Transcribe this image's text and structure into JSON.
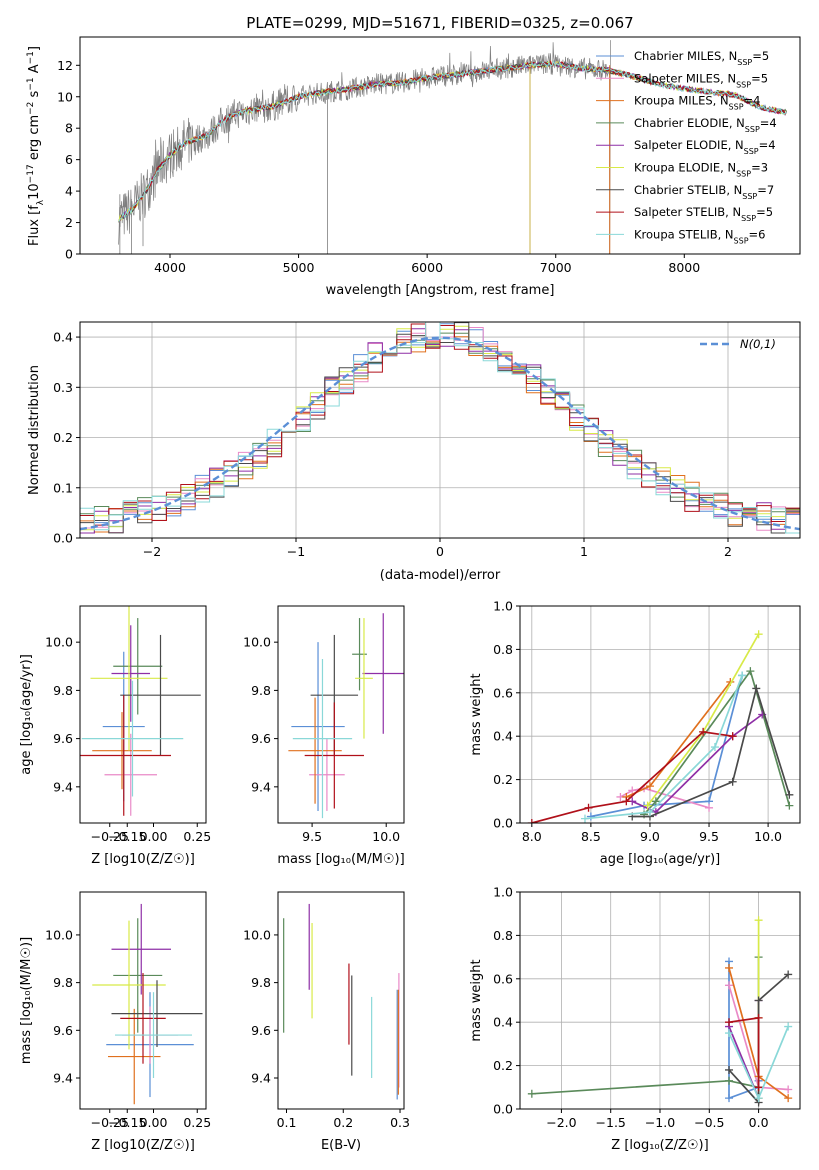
{
  "title": "PLATE=0299, MJD=51671, FIBERID=0325, z=0.067",
  "colors": {
    "chabrier_miles": "#5b8fd6",
    "salpeter_miles": "#e98ac7",
    "kroupa_miles": "#e0701e",
    "chabrier_elodie": "#5a8a5a",
    "salpeter_elodie": "#8e2fa6",
    "kroupa_elodie": "#d8ea48",
    "chabrier_stelib": "#4a4a4a",
    "salpeter_stelib": "#b0101a",
    "kroupa_stelib": "#8ad8d8",
    "data": "#7f7f7f",
    "normal": "#5b8fd6"
  },
  "chart_data": [
    {
      "type": "line",
      "title": "PLATE=0299, MJD=51671, FIBERID=0325, z=0.067",
      "xlabel": "wavelength [Angstrom, rest frame]",
      "ylabel": "Flux [f_λ 10^-17 erg cm^-2 s^-1 A^-1]",
      "xlim": [
        3300,
        8900
      ],
      "ylim": [
        0,
        13.8
      ],
      "xticks": [
        "4000",
        "5000",
        "6000",
        "7000",
        "8000"
      ],
      "yticks": [
        "0",
        "2",
        "4",
        "6",
        "8",
        "10",
        "12"
      ],
      "legend_position": "top-right",
      "legend": [
        {
          "base": "Chabrier MILES, N",
          "sub": "SSP",
          "tail": "=5"
        },
        {
          "base": "Salpeter MILES, N",
          "sub": "SSP",
          "tail": "=5"
        },
        {
          "base": "Kroupa MILES, N",
          "sub": "SSP",
          "tail": "=4"
        },
        {
          "base": "Chabrier ELODIE, N",
          "sub": "SSP",
          "tail": "=4"
        },
        {
          "base": "Salpeter ELODIE, N",
          "sub": "SSP",
          "tail": "=4"
        },
        {
          "base": "Kroupa ELODIE, N",
          "sub": "SSP",
          "tail": "=3"
        },
        {
          "base": "Chabrier STELIB, N",
          "sub": "SSP",
          "tail": "=7"
        },
        {
          "base": "Salpeter STELIB, N",
          "sub": "SSP",
          "tail": "=5"
        },
        {
          "base": "Kroupa STELIB, N",
          "sub": "SSP",
          "tail": "=6"
        }
      ],
      "model_continuum": {
        "x": [
          3600,
          3700,
          3800,
          3900,
          4000,
          4100,
          4200,
          4300,
          4400,
          4500,
          4600,
          4800,
          5000,
          5200,
          5400,
          5600,
          5800,
          6000,
          6200,
          6400,
          6600,
          6800,
          7000,
          7200,
          7400,
          7600,
          7800,
          8000,
          8200,
          8400,
          8600,
          8800
        ],
        "y": [
          2.2,
          2.8,
          3.8,
          5.3,
          6.3,
          7.0,
          7.3,
          7.6,
          8.4,
          8.9,
          9.1,
          9.4,
          10.0,
          10.3,
          10.5,
          10.8,
          10.9,
          11.2,
          11.4,
          11.6,
          11.8,
          12.0,
          12.1,
          11.8,
          11.7,
          11.3,
          10.8,
          10.5,
          10.3,
          10.1,
          9.3,
          9.0
        ]
      },
      "data_spectrum_note": "noisy observed spectrum drawn in grey around the models"
    },
    {
      "type": "histogram",
      "xlabel": "(data-model)/error",
      "ylabel": "Normed distribution",
      "xlim": [
        -2.5,
        2.5
      ],
      "ylim": [
        0,
        0.43
      ],
      "xticks": [
        "−2",
        "−1",
        "0",
        "1",
        "2"
      ],
      "yticks": [
        "0.0",
        "0.1",
        "0.2",
        "0.3",
        "0.4"
      ],
      "legend_position": "top-right",
      "legend_label": "N(0,1)",
      "bin_width": 0.1,
      "reference_curve": "standard normal density"
    },
    {
      "type": "scatter",
      "panel": "age vs Z",
      "xlabel": "Z [log10(Z/Z☉)]",
      "ylabel": "age [log10(age/yr)]",
      "xlim": [
        -0.42,
        0.3
      ],
      "ylim": [
        9.25,
        10.15
      ],
      "xticks": [
        "−0.25",
        "−0.15",
        "0.00",
        "0.25"
      ],
      "yticks": [
        "9.4",
        "9.6",
        "9.8",
        "10.0"
      ],
      "points": [
        {
          "series": "chabrier_miles",
          "x": -0.17,
          "xerr": 0.12,
          "y": 9.65,
          "yerr": 0.31
        },
        {
          "series": "salpeter_miles",
          "x": -0.13,
          "xerr": 0.15,
          "y": 9.45,
          "yerr": 0.17
        },
        {
          "series": "kroupa_miles",
          "x": -0.18,
          "xerr": 0.17,
          "y": 9.55,
          "yerr": 0.16
        },
        {
          "series": "chabrier_elodie",
          "x": -0.09,
          "xerr": 0.14,
          "y": 9.9,
          "yerr": 0.2
        },
        {
          "series": "salpeter_elodie",
          "x": -0.13,
          "xerr": 0.11,
          "y": 9.87,
          "yerr": 0.2
        },
        {
          "series": "kroupa_elodie",
          "x": -0.14,
          "xerr": 0.22,
          "y": 9.85,
          "yerr": 0.3
        },
        {
          "series": "chabrier_stelib",
          "x": 0.04,
          "xerr": 0.23,
          "y": 9.78,
          "yerr": 0.25
        },
        {
          "series": "salpeter_stelib",
          "x": -0.17,
          "xerr": 0.27,
          "y": 9.53,
          "yerr": 0.25
        },
        {
          "series": "kroupa_stelib",
          "x": -0.12,
          "xerr": 0.29,
          "y": 9.6,
          "yerr": 0.24
        }
      ]
    },
    {
      "type": "scatter",
      "panel": "age vs mass",
      "xlabel": "mass [log10(M/M☉)]",
      "ylabel": "",
      "xlim": [
        9.27,
        10.12
      ],
      "ylim": [
        9.25,
        10.15
      ],
      "xticks": [
        "9.5",
        "10.0"
      ],
      "yticks": [
        "9.4",
        "9.6",
        "9.8",
        "10.0"
      ],
      "points": [
        {
          "series": "chabrier_miles",
          "x": 9.54,
          "xerr": 0.18,
          "y": 9.65,
          "yerr": 0.35
        },
        {
          "series": "salpeter_miles",
          "x": 9.6,
          "xerr": 0.12,
          "y": 9.45,
          "yerr": 0.15
        },
        {
          "series": "kroupa_miles",
          "x": 9.52,
          "xerr": 0.18,
          "y": 9.55,
          "yerr": 0.22
        },
        {
          "series": "chabrier_elodie",
          "x": 9.82,
          "xerr": 0.05,
          "y": 9.95,
          "yerr": 0.15
        },
        {
          "series": "salpeter_elodie",
          "x": 9.98,
          "xerr": 0.14,
          "y": 9.87,
          "yerr": 0.25
        },
        {
          "series": "kroupa_elodie",
          "x": 9.85,
          "xerr": 0.06,
          "y": 9.85,
          "yerr": 0.25
        },
        {
          "series": "chabrier_stelib",
          "x": 9.65,
          "xerr": 0.16,
          "y": 9.78,
          "yerr": 0.25
        },
        {
          "series": "salpeter_stelib",
          "x": 9.65,
          "xerr": 0.2,
          "y": 9.53,
          "yerr": 0.22
        },
        {
          "series": "kroupa_stelib",
          "x": 9.57,
          "xerr": 0.2,
          "y": 9.6,
          "yerr": 0.33
        }
      ]
    },
    {
      "type": "line",
      "panel": "mass weight vs age",
      "xlabel": "age [log10(age/yr)]",
      "ylabel": "mass weight",
      "xlim": [
        7.9,
        10.27
      ],
      "ylim": [
        0,
        1.0
      ],
      "xticks": [
        "8.0",
        "8.5",
        "9.0",
        "9.5",
        "10.0"
      ],
      "yticks": [
        "0.0",
        "0.2",
        "0.4",
        "0.6",
        "0.8",
        "1.0"
      ],
      "series": [
        {
          "name": "chabrier_miles",
          "x": [
            8.5,
            8.95,
            9.5,
            9.78
          ],
          "y": [
            0.03,
            0.08,
            0.1,
            0.68
          ]
        },
        {
          "name": "salpeter_miles",
          "x": [
            8.75,
            8.85,
            8.95,
            9.5
          ],
          "y": [
            0.12,
            0.15,
            0.16,
            0.07
          ]
        },
        {
          "name": "kroupa_miles",
          "x": [
            8.8,
            9.0,
            9.68
          ],
          "y": [
            0.12,
            0.17,
            0.65
          ]
        },
        {
          "name": "chabrier_elodie",
          "x": [
            8.95,
            9.05,
            9.85,
            10.18
          ],
          "y": [
            0.04,
            0.1,
            0.7,
            0.08
          ]
        },
        {
          "name": "salpeter_elodie",
          "x": [
            8.85,
            9.05,
            9.7,
            9.95
          ],
          "y": [
            0.1,
            0.05,
            0.4,
            0.5
          ]
        },
        {
          "name": "kroupa_elodie",
          "x": [
            8.98,
            9.45,
            9.92
          ],
          "y": [
            0.08,
            0.42,
            0.87
          ]
        },
        {
          "name": "chabrier_stelib",
          "x": [
            8.85,
            9.0,
            9.7,
            9.9,
            10.18
          ],
          "y": [
            0.03,
            0.03,
            0.19,
            0.62,
            0.13
          ]
        },
        {
          "name": "salpeter_stelib",
          "x": [
            8.0,
            8.48,
            8.8,
            9.45,
            9.7
          ],
          "y": [
            0.0,
            0.07,
            0.1,
            0.42,
            0.4
          ]
        },
        {
          "name": "kroupa_stelib",
          "x": [
            8.45,
            9.0,
            9.55,
            9.78
          ],
          "y": [
            0.02,
            0.05,
            0.35,
            0.68
          ]
        }
      ]
    },
    {
      "type": "scatter",
      "panel": "mass vs Z",
      "xlabel": "Z [log10(Z/Z☉)]",
      "ylabel": "mass [log10(M/M☉)]",
      "xlim": [
        -0.42,
        0.3
      ],
      "ylim": [
        9.27,
        10.18
      ],
      "xticks": [
        "−0.25",
        "−0.15",
        "0.00",
        "0.25"
      ],
      "yticks": [
        "9.4",
        "9.6",
        "9.8",
        "10.0"
      ],
      "points": [
        {
          "series": "chabrier_miles",
          "x": -0.02,
          "xerr": 0.25,
          "y": 9.54,
          "yerr": 0.22
        },
        {
          "series": "salpeter_miles",
          "x": -0.02,
          "xerr": 0.16,
          "y": 9.58,
          "yerr": 0.12
        },
        {
          "series": "kroupa_miles",
          "x": -0.11,
          "xerr": 0.15,
          "y": 9.49,
          "yerr": 0.2
        },
        {
          "series": "chabrier_elodie",
          "x": -0.09,
          "xerr": 0.14,
          "y": 9.83,
          "yerr": 0.24
        },
        {
          "series": "salpeter_elodie",
          "x": -0.07,
          "xerr": 0.17,
          "y": 9.94,
          "yerr": 0.19
        },
        {
          "series": "kroupa_elodie",
          "x": -0.14,
          "xerr": 0.21,
          "y": 9.79,
          "yerr": 0.27
        },
        {
          "series": "chabrier_stelib",
          "x": 0.02,
          "xerr": 0.26,
          "y": 9.67,
          "yerr": 0.14
        },
        {
          "series": "salpeter_stelib",
          "x": -0.06,
          "xerr": 0.13,
          "y": 9.65,
          "yerr": 0.19
        },
        {
          "series": "kroupa_stelib",
          "x": 0.0,
          "xerr": 0.22,
          "y": 9.58,
          "yerr": 0.18
        }
      ]
    },
    {
      "type": "scatter",
      "panel": "mass vs E(B-V)",
      "xlabel": "E(B-V)",
      "ylabel": "",
      "xlim": [
        0.085,
        0.307
      ],
      "ylim": [
        9.27,
        10.18
      ],
      "xticks": [
        "0.1",
        "0.2",
        "0.3"
      ],
      "yticks": [
        "9.4",
        "9.6",
        "9.8",
        "10.0"
      ],
      "points": [
        {
          "series": "chabrier_elodie",
          "x": 0.095,
          "yerr": 0.24,
          "y": 9.83
        },
        {
          "series": "salpeter_elodie",
          "x": 0.14,
          "yerr": 0.18,
          "y": 9.95
        },
        {
          "series": "kroupa_elodie",
          "x": 0.145,
          "yerr": 0.2,
          "y": 9.85
        },
        {
          "series": "chabrier_stelib",
          "x": 0.215,
          "yerr": 0.21,
          "y": 9.62
        },
        {
          "series": "salpeter_stelib",
          "x": 0.21,
          "yerr": 0.17,
          "y": 9.71
        },
        {
          "series": "kroupa_stelib",
          "x": 0.25,
          "yerr": 0.17,
          "y": 9.57
        },
        {
          "series": "chabrier_miles",
          "x": 0.295,
          "yerr": 0.23,
          "y": 9.54
        },
        {
          "series": "salpeter_miles",
          "x": 0.298,
          "yerr": 0.24,
          "y": 9.6
        },
        {
          "series": "kroupa_miles",
          "x": 0.297,
          "yerr": 0.22,
          "y": 9.55
        }
      ]
    },
    {
      "type": "line",
      "panel": "mass weight vs Z",
      "xlabel": "Z [log10(Z/Z☉)]",
      "ylabel": "mass weight",
      "xlim": [
        -2.42,
        0.42
      ],
      "ylim": [
        0,
        1.0
      ],
      "xticks": [
        "−2.0",
        "−1.5",
        "−1.0",
        "−0.5",
        "0.0"
      ],
      "yticks": [
        "0.0",
        "0.2",
        "0.4",
        "0.6",
        "0.8",
        "1.0"
      ],
      "series": [
        {
          "name": "chabrier_miles",
          "x": [
            -0.3,
            -0.3,
            0.0,
            0.0
          ],
          "y": [
            0.68,
            0.05,
            0.1,
            0.13
          ]
        },
        {
          "name": "salpeter_miles",
          "x": [
            -0.3,
            0.0,
            0.3
          ],
          "y": [
            0.57,
            0.1,
            0.09
          ]
        },
        {
          "name": "kroupa_miles",
          "x": [
            -0.3,
            0.0,
            0.3
          ],
          "y": [
            0.65,
            0.15,
            0.05
          ]
        },
        {
          "name": "chabrier_elodie",
          "x": [
            -2.3,
            -0.3,
            0.0,
            0.0
          ],
          "y": [
            0.07,
            0.13,
            0.1,
            0.7
          ]
        },
        {
          "name": "salpeter_elodie",
          "x": [
            -0.3,
            0.0,
            0.0
          ],
          "y": [
            0.38,
            0.05,
            0.5
          ]
        },
        {
          "name": "kroupa_elodie",
          "x": [
            0.0,
            0.0,
            0.0
          ],
          "y": [
            0.87,
            0.05,
            0.42
          ]
        },
        {
          "name": "chabrier_stelib",
          "x": [
            -0.3,
            0.0,
            0.0,
            0.3
          ],
          "y": [
            0.18,
            0.03,
            0.5,
            0.62
          ]
        },
        {
          "name": "salpeter_stelib",
          "x": [
            -0.3,
            0.0,
            0.0
          ],
          "y": [
            0.4,
            0.42,
            0.1
          ]
        },
        {
          "name": "kroupa_stelib",
          "x": [
            -0.3,
            0.0,
            0.3
          ],
          "y": [
            0.35,
            0.05,
            0.38
          ]
        }
      ]
    }
  ]
}
